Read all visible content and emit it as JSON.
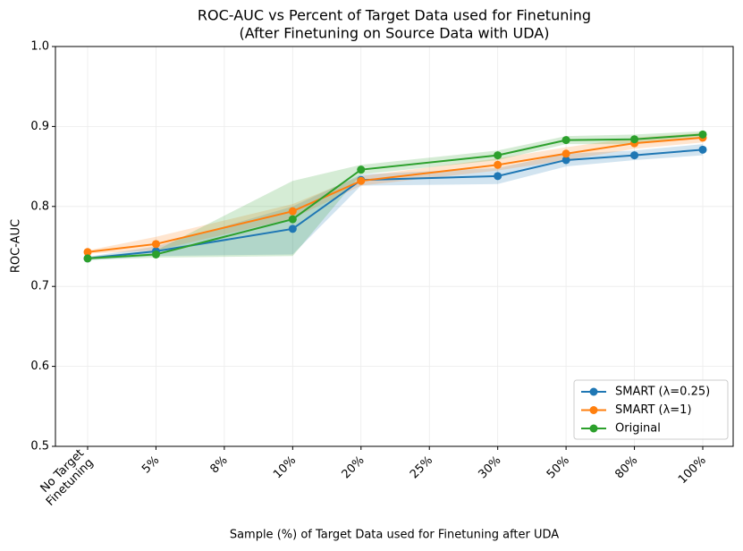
{
  "chart_data": {
    "type": "line",
    "title": "ROC-AUC vs Percent of Target Data used for Finetuning",
    "subtitle": "(After Finetuning on Source Data with UDA)",
    "x_label": "Sample (%) of Target Data used for Finetuning after UDA",
    "y_label": "ROC-AUC",
    "categories": [
      "No Target\nFinetuning",
      "5%",
      "8%",
      "10%",
      "20%",
      "25%",
      "30%",
      "50%",
      "80%",
      "100%"
    ],
    "ylim": [
      0.5,
      1.0
    ],
    "yticks": [
      0.5,
      0.6,
      0.7,
      0.8,
      0.9,
      {
        "value": 1.0,
        "label": "1.0"
      }
    ],
    "grid": true,
    "legend": "lower right",
    "series": [
      {
        "name": "SMART (λ=0.25)",
        "color": "#1f77b4",
        "x": [
          "No Target\nFinetuning",
          "5%",
          "10%",
          "20%",
          "30%",
          "50%",
          "80%",
          "100%"
        ],
        "values": [
          0.735,
          0.744,
          0.772,
          0.833,
          0.838,
          0.858,
          0.864,
          0.871
        ],
        "lower": [
          0.733,
          0.738,
          0.74,
          0.826,
          0.828,
          0.85,
          0.858,
          0.864
        ],
        "upper": [
          0.737,
          0.75,
          0.8,
          0.84,
          0.848,
          0.866,
          0.87,
          0.878
        ]
      },
      {
        "name": "SMART (λ=1)",
        "color": "#ff7f0e",
        "x": [
          "No Target\nFinetuning",
          "5%",
          "10%",
          "20%",
          "30%",
          "50%",
          "80%",
          "100%"
        ],
        "values": [
          0.743,
          0.753,
          0.794,
          0.832,
          0.852,
          0.866,
          0.879,
          0.886
        ],
        "lower": [
          0.741,
          0.745,
          0.785,
          0.826,
          0.845,
          0.858,
          0.872,
          0.88
        ],
        "upper": [
          0.745,
          0.762,
          0.803,
          0.838,
          0.86,
          0.874,
          0.886,
          0.892
        ]
      },
      {
        "name": "Original",
        "color": "#2ca02c",
        "x": [
          "No Target\nFinetuning",
          "5%",
          "10%",
          "20%",
          "30%",
          "50%",
          "80%",
          "100%"
        ],
        "values": [
          0.735,
          0.74,
          0.784,
          0.846,
          0.864,
          0.883,
          0.884,
          0.89
        ],
        "lower": [
          0.733,
          0.736,
          0.738,
          0.84,
          0.858,
          0.878,
          0.878,
          0.886
        ],
        "upper": [
          0.737,
          0.745,
          0.832,
          0.852,
          0.87,
          0.888,
          0.89,
          0.894
        ]
      }
    ]
  }
}
